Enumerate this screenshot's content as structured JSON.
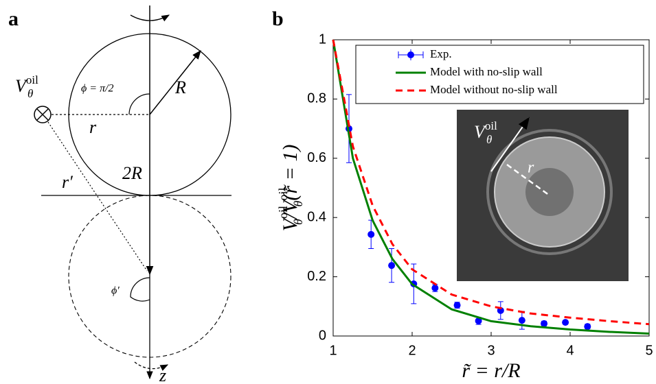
{
  "panel_labels": [
    "a",
    "b"
  ],
  "diagram": {
    "velocity": {
      "symbol": "V",
      "sub": "θ",
      "sup": "oil"
    },
    "phi": "ϕ = π/2",
    "radius": "R",
    "distance": "r",
    "diameter": "2R",
    "distance_image": "r′",
    "phi_image": "ϕ′",
    "axis": "z"
  },
  "inset": {
    "velocity": {
      "symbol": "V",
      "sub": "θ",
      "sup": "oil"
    },
    "radius": "r"
  },
  "chart_data": {
    "type": "line",
    "xlabel": "r̃ = r/R",
    "ylabel": [
      "V",
      "θ",
      "oil",
      "/V",
      "θ",
      "oil",
      "(r̃ = 1)"
    ],
    "xlim": [
      1,
      5
    ],
    "ylim": [
      0,
      1
    ],
    "xticks": [
      1,
      2,
      3,
      4,
      5
    ],
    "yticks": [
      0,
      0.2,
      0.4,
      0.6,
      0.8,
      1
    ],
    "legend": "top-right",
    "series": [
      {
        "name": "Exp.",
        "color": "#0000ff",
        "style": "errorbar",
        "x": [
          1.2,
          1.48,
          1.74,
          2.02,
          2.29,
          2.57,
          2.84,
          3.12,
          3.39,
          3.67,
          3.94,
          4.22
        ],
        "values": [
          0.7,
          0.343,
          0.238,
          0.176,
          0.162,
          0.104,
          0.051,
          0.086,
          0.053,
          0.042,
          0.046,
          0.032
        ],
        "yerr": [
          0.115,
          0.048,
          0.057,
          0.067,
          0.012,
          0.01,
          0.012,
          0.03,
          0.03,
          0.008,
          0.005,
          0.008
        ]
      },
      {
        "name": "Model with no-slip wall",
        "color": "#008000",
        "style": "solid",
        "x": [
          1,
          1.25,
          1.5,
          1.75,
          2,
          2.5,
          3,
          3.5,
          4,
          4.5,
          5
        ],
        "values": [
          1,
          0.6,
          0.39,
          0.26,
          0.175,
          0.09,
          0.05,
          0.033,
          0.022,
          0.014,
          0.008
        ]
      },
      {
        "name": "Model without no-slip wall",
        "color": "#ff0000",
        "style": "dashed",
        "x": [
          1,
          1.25,
          1.5,
          1.75,
          2,
          2.5,
          3,
          3.5,
          4,
          4.5,
          5
        ],
        "values": [
          1,
          0.64,
          0.44,
          0.31,
          0.225,
          0.14,
          0.1,
          0.076,
          0.062,
          0.05,
          0.04
        ]
      }
    ]
  }
}
